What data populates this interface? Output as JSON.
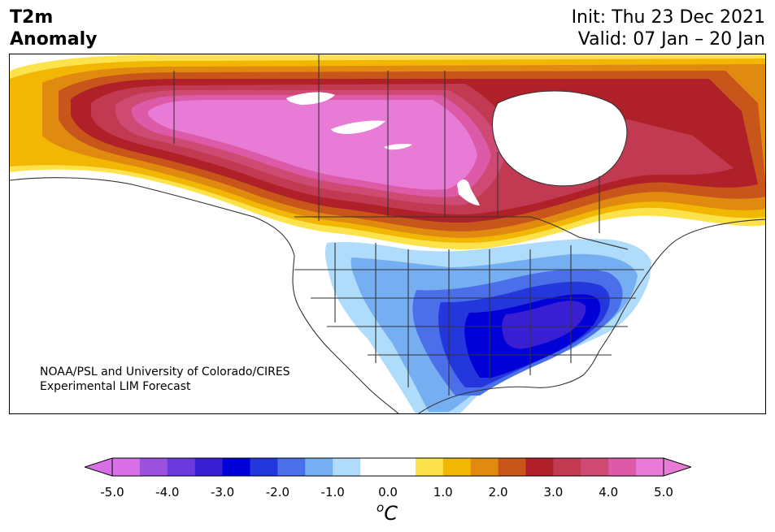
{
  "header": {
    "variable_line1": "T2m",
    "variable_line2": "Anomaly",
    "init_text": "Init: Thu 23 Dec 2021",
    "valid_text": "Valid: 07 Jan – 20 Jan"
  },
  "credit": {
    "line1": "NOAA/PSL and University of Colorado/CIRES",
    "line2": "Experimental LIM Forecast"
  },
  "colorbar": {
    "unit_base": "C",
    "unit_sup": "o",
    "ticks": [
      "-5.0",
      "-4.0",
      "-3.0",
      "-2.0",
      "-1.0",
      "0.0",
      "1.0",
      "2.0",
      "3.0",
      "4.0",
      "5.0"
    ],
    "colors": [
      "#d96fe6",
      "#9a4fdd",
      "#6a3adf",
      "#3a1fd2",
      "#0000d7",
      "#2437dc",
      "#4a6fe8",
      "#76aef2",
      "#b0dcfb",
      "#ffffff",
      "#ffffff",
      "#fde34b",
      "#f2b705",
      "#e08a10",
      "#c8561a",
      "#b02028",
      "#c23a52",
      "#cf4a73",
      "#dc5aa8",
      "#e87bd6"
    ],
    "extend_min_color": "#d96fe6",
    "extend_max_color": "#e87bd6"
  },
  "map": {
    "region": "North America",
    "warm_colors": {
      "yellow": "#fde34b",
      "gold": "#f2b705",
      "orange": "#e08a10",
      "dark_orange": "#c8561a",
      "red": "#b02028",
      "crimson": "#c23a52",
      "rose": "#cf4a73",
      "pink": "#dc5aa8",
      "magenta": "#e87bd6"
    },
    "cold_colors": {
      "lightest": "#b0dcfb",
      "light": "#76aef2",
      "mid": "#4a6fe8",
      "blue": "#2437dc",
      "deep": "#0000d7",
      "indigo": "#3a1fd2"
    },
    "border_color": "#333333"
  }
}
